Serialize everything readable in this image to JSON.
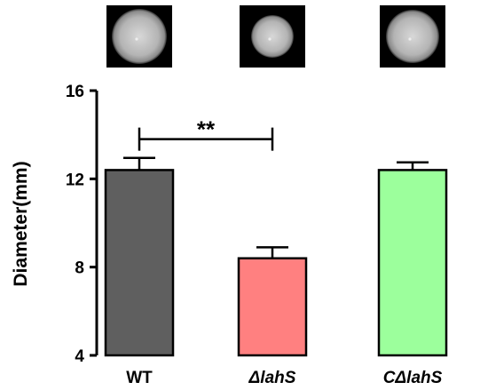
{
  "chart_data": {
    "type": "bar",
    "ylabel": "Diameter(mm)",
    "ylim": [
      4,
      16
    ],
    "yticks": [
      "4",
      "8",
      "12",
      "16"
    ],
    "categories": [
      "WT",
      "ΔlahS",
      "CΔlahS"
    ],
    "italic_categories": [
      false,
      true,
      true
    ],
    "values": [
      12.4,
      8.4,
      12.4
    ],
    "errors": [
      0.55,
      0.5,
      0.35
    ],
    "colors": [
      "#5f5f5f",
      "#ff8080",
      "#9cff9c"
    ],
    "significance": {
      "label": "**",
      "between": [
        0,
        1
      ],
      "y": 13.8
    },
    "grid": false,
    "legend": "none",
    "colony_images": [
      "large-colony",
      "small-colony",
      "large-colony"
    ]
  }
}
